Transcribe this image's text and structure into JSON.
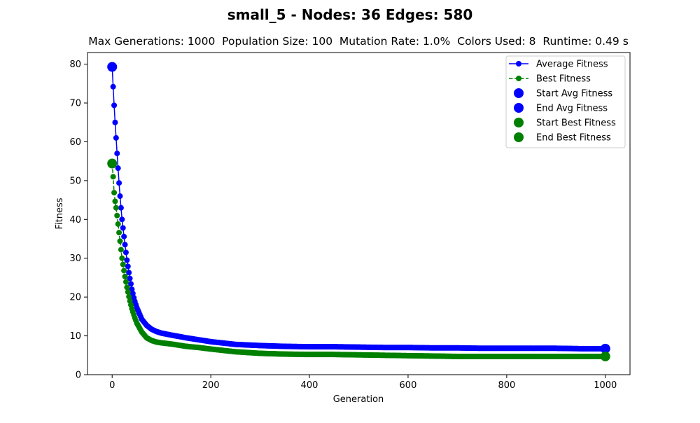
{
  "chart_data": {
    "type": "line",
    "title": "small_5 - Nodes: 36 Edges: 580",
    "subtitle": "Max Generations: 1000  Population Size: 100  Mutation Rate: 1.0%  Colors Used: 8  Runtime: 0.49 s",
    "xlabel": "Generation",
    "ylabel": "Fitness",
    "xlim": [
      -50,
      1050
    ],
    "ylim": [
      0,
      83
    ],
    "xticks": [
      0,
      200,
      400,
      600,
      800,
      1000
    ],
    "yticks": [
      0,
      10,
      20,
      30,
      40,
      50,
      60,
      70,
      80
    ],
    "grid": false,
    "legend_position": "top-right",
    "colors": {
      "average": "#0000ff",
      "best": "#008000"
    },
    "series": [
      {
        "name": "Average Fitness",
        "style": "solid",
        "color": "#0000ff",
        "x": [
          0,
          2,
          5,
          10,
          15,
          20,
          25,
          30,
          35,
          40,
          45,
          50,
          60,
          70,
          80,
          90,
          100,
          120,
          150,
          175,
          200,
          250,
          300,
          350,
          400,
          450,
          500,
          550,
          600,
          650,
          700,
          750,
          800,
          850,
          900,
          950,
          1000
        ],
        "values": [
          79.3,
          74.2,
          67.0,
          57.0,
          47.5,
          40.0,
          34.5,
          29.5,
          25.5,
          22.0,
          19.3,
          17.3,
          14.3,
          12.7,
          11.7,
          11.1,
          10.7,
          10.2,
          9.5,
          9.0,
          8.5,
          7.8,
          7.5,
          7.3,
          7.2,
          7.2,
          7.1,
          7.0,
          7.0,
          6.9,
          6.9,
          6.8,
          6.8,
          6.8,
          6.8,
          6.7,
          6.7
        ]
      },
      {
        "name": "Best Fitness",
        "style": "dashed",
        "color": "#008000",
        "x": [
          0,
          2,
          3,
          5,
          8,
          10,
          15,
          20,
          25,
          30,
          35,
          40,
          45,
          50,
          60,
          70,
          80,
          90,
          100,
          120,
          150,
          175,
          200,
          250,
          300,
          350,
          400,
          450,
          500,
          550,
          600,
          650,
          700,
          750,
          800,
          850,
          900,
          950,
          1000
        ],
        "values": [
          54.4,
          51.0,
          48.3,
          45.5,
          43.0,
          41.0,
          35.5,
          30.0,
          26.0,
          22.5,
          19.5,
          17.0,
          15.0,
          13.3,
          11.0,
          9.5,
          8.8,
          8.4,
          8.2,
          7.9,
          7.3,
          7.0,
          6.6,
          5.9,
          5.5,
          5.3,
          5.2,
          5.2,
          5.1,
          5.0,
          4.9,
          4.8,
          4.7,
          4.7,
          4.7,
          4.7,
          4.7,
          4.7,
          4.7
        ]
      }
    ],
    "markers": [
      {
        "name": "Start Avg Fitness",
        "x": 0,
        "y": 79.3,
        "color": "#0000ff"
      },
      {
        "name": "End Avg Fitness",
        "x": 1000,
        "y": 6.7,
        "color": "#0000ff"
      },
      {
        "name": "Start Best Fitness",
        "x": 0,
        "y": 54.4,
        "color": "#008000"
      },
      {
        "name": "End Best Fitness",
        "x": 1000,
        "y": 4.7,
        "color": "#008000"
      }
    ]
  }
}
